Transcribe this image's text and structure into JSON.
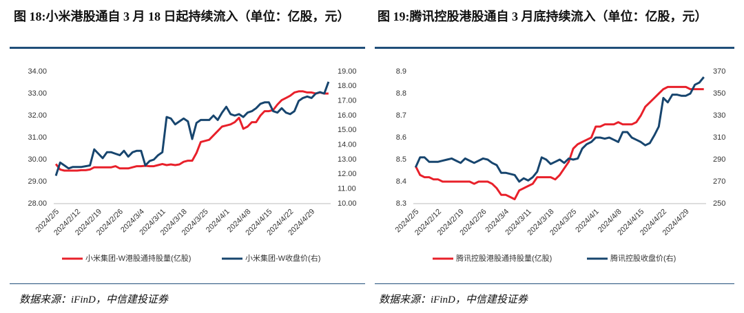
{
  "chart_data": [
    {
      "type": "line",
      "title": "图 18:小米港股通自 3 月 18 日起持续流入（单位：亿股，元）",
      "source": "数据来源：iFinD，中信建投证券",
      "categories": [
        "2024/2/5",
        null,
        null,
        null,
        null,
        "2024/2/12",
        null,
        null,
        null,
        null,
        "2024/2/19",
        null,
        null,
        null,
        null,
        "2024/2/26",
        null,
        null,
        null,
        null,
        "2024/3/4",
        null,
        null,
        null,
        null,
        "2024/3/11",
        null,
        null,
        null,
        null,
        "2024/3/18",
        null,
        null,
        null,
        null,
        "2024/3/25",
        null,
        null,
        null,
        null,
        "2024/4/1",
        null,
        null,
        null,
        null,
        "2024/4/8",
        null,
        null,
        null,
        null,
        "2024/4/15",
        null,
        null,
        null,
        null,
        "2024/4/22",
        null,
        null,
        null,
        null,
        "2024/4/29",
        null,
        null,
        null,
        null
      ],
      "ylim": [
        28,
        34
      ],
      "yticks": [
        {
          "value": 28,
          "label": "28.00"
        },
        {
          "value": 29,
          "label": "29.00"
        },
        {
          "value": 30,
          "label": "30.00"
        },
        {
          "value": 31,
          "label": "31.00"
        },
        {
          "value": 32,
          "label": "32.00"
        },
        {
          "value": 33,
          "label": "33.00"
        },
        {
          "value": 34,
          "label": "34.00"
        }
      ],
      "y2lim": [
        10,
        19
      ],
      "y2ticks": [
        {
          "value": 10,
          "label": "10.00"
        },
        {
          "value": 11,
          "label": "11.00"
        },
        {
          "value": 12,
          "label": "12.00"
        },
        {
          "value": 13,
          "label": "13.00"
        },
        {
          "value": 14,
          "label": "14.00"
        },
        {
          "value": 15,
          "label": "15.00"
        },
        {
          "value": 16,
          "label": "16.00"
        },
        {
          "value": 17,
          "label": "17.00"
        },
        {
          "value": 18,
          "label": "18.00"
        },
        {
          "value": 19,
          "label": "19.00"
        }
      ],
      "series": [
        {
          "name": "小米集团-W港股通持股量(亿股)",
          "color": "#e8202a",
          "values": [
            29.8,
            29.55,
            29.5,
            29.5,
            29.5,
            29.5,
            29.52,
            29.52,
            29.55,
            29.65,
            29.65,
            29.65,
            29.65,
            29.65,
            29.7,
            29.6,
            29.6,
            29.6,
            29.65,
            29.7,
            29.7,
            29.72,
            29.7,
            29.7,
            29.75,
            29.8,
            29.75,
            29.78,
            29.75,
            29.78,
            29.9,
            29.95,
            29.95,
            30.3,
            30.8,
            30.85,
            30.9,
            31.1,
            31.3,
            31.5,
            31.55,
            31.6,
            31.7,
            31.9,
            31.4,
            31.5,
            31.7,
            31.7,
            32.0,
            32.2,
            32.2,
            32.25,
            32.5,
            32.7,
            32.8,
            32.9,
            33.05,
            33.1,
            33.1,
            33.05,
            33.05,
            33.0,
            33.05,
            33.0,
            33.0
          ]
        },
        {
          "name": "小米集团-W收盘价(右)",
          "color": "#17456e",
          "axis": "y2",
          "values": [
            11.9,
            12.8,
            12.6,
            12.4,
            12.5,
            12.5,
            12.5,
            12.55,
            12.6,
            13.7,
            13.4,
            13.1,
            13.5,
            13.5,
            13.4,
            13.3,
            13.6,
            13.2,
            13.5,
            13.6,
            13.6,
            12.6,
            12.9,
            13.0,
            13.3,
            13.5,
            15.9,
            15.8,
            15.4,
            15.6,
            15.8,
            15.6,
            14.4,
            15.5,
            15.7,
            15.7,
            15.7,
            16.0,
            15.7,
            16.2,
            16.6,
            16.1,
            16.0,
            16.1,
            15.9,
            16.2,
            16.3,
            16.5,
            16.8,
            16.9,
            16.9,
            16.3,
            16.2,
            16.5,
            16.2,
            16.1,
            16.3,
            17.0,
            17.2,
            17.3,
            17.2,
            17.5,
            17.6,
            17.5,
            18.3
          ]
        }
      ]
    },
    {
      "type": "line",
      "title": "图 19:腾讯控股港股通自 3 月底持续流入（单位：亿股，元）",
      "source": "数据来源：iFinD，中信建投证券",
      "categories": [
        "2024/2/5",
        null,
        null,
        null,
        null,
        "2024/2/12",
        null,
        null,
        null,
        null,
        "2024/2/19",
        null,
        null,
        null,
        null,
        "2024/2/26",
        null,
        null,
        null,
        null,
        "2024/3/4",
        null,
        null,
        null,
        null,
        "2024/3/11",
        null,
        null,
        null,
        null,
        "2024/3/18",
        null,
        null,
        null,
        null,
        "2024/3/25",
        null,
        null,
        null,
        null,
        "2024/4/1",
        null,
        null,
        null,
        null,
        "2024/4/8",
        null,
        null,
        null,
        null,
        "2024/4/15",
        null,
        null,
        null,
        null,
        "2024/4/22",
        null,
        null,
        null,
        null,
        "2024/4/29",
        null,
        null,
        null,
        null
      ],
      "ylim": [
        8.3,
        8.9
      ],
      "yticks": [
        8.3,
        8.4,
        8.5,
        8.6,
        8.7,
        8.8,
        8.9
      ],
      "y2lim": [
        250,
        370
      ],
      "y2ticks": [
        250,
        270,
        290,
        310,
        330,
        350,
        370
      ],
      "series": [
        {
          "name": "腾讯控股港股通持股量(亿股)",
          "color": "#e8202a",
          "values": [
            8.47,
            8.43,
            8.42,
            8.42,
            8.41,
            8.41,
            8.4,
            8.4,
            8.4,
            8.4,
            8.4,
            8.4,
            8.4,
            8.39,
            8.4,
            8.4,
            8.4,
            8.39,
            8.37,
            8.34,
            8.34,
            8.33,
            8.32,
            8.36,
            8.37,
            8.38,
            8.39,
            8.42,
            8.42,
            8.42,
            8.42,
            8.41,
            8.43,
            8.46,
            8.49,
            8.55,
            8.57,
            8.58,
            8.59,
            8.6,
            8.65,
            8.65,
            8.66,
            8.66,
            8.66,
            8.67,
            8.66,
            8.66,
            8.66,
            8.67,
            8.7,
            8.74,
            8.76,
            8.78,
            8.8,
            8.82,
            8.83,
            8.83,
            8.83,
            8.83,
            8.83,
            8.82,
            8.82,
            8.82,
            8.82
          ]
        },
        {
          "name": "腾讯控股收盘价(右)",
          "color": "#17456e",
          "axis": "y2",
          "values": [
            283,
            292,
            292,
            288,
            288,
            288,
            289,
            290,
            291,
            289,
            287,
            291,
            289,
            287,
            289,
            291,
            290,
            287,
            285,
            278,
            278,
            277,
            276,
            270,
            273,
            271,
            274,
            279,
            292,
            290,
            286,
            288,
            290,
            287,
            291,
            290,
            291,
            300,
            304,
            306,
            310,
            310,
            309,
            310,
            308,
            306,
            315,
            315,
            310,
            308,
            306,
            303,
            305,
            312,
            320,
            346,
            342,
            349,
            349,
            348,
            348,
            350,
            358,
            360,
            365
          ]
        }
      ]
    }
  ]
}
